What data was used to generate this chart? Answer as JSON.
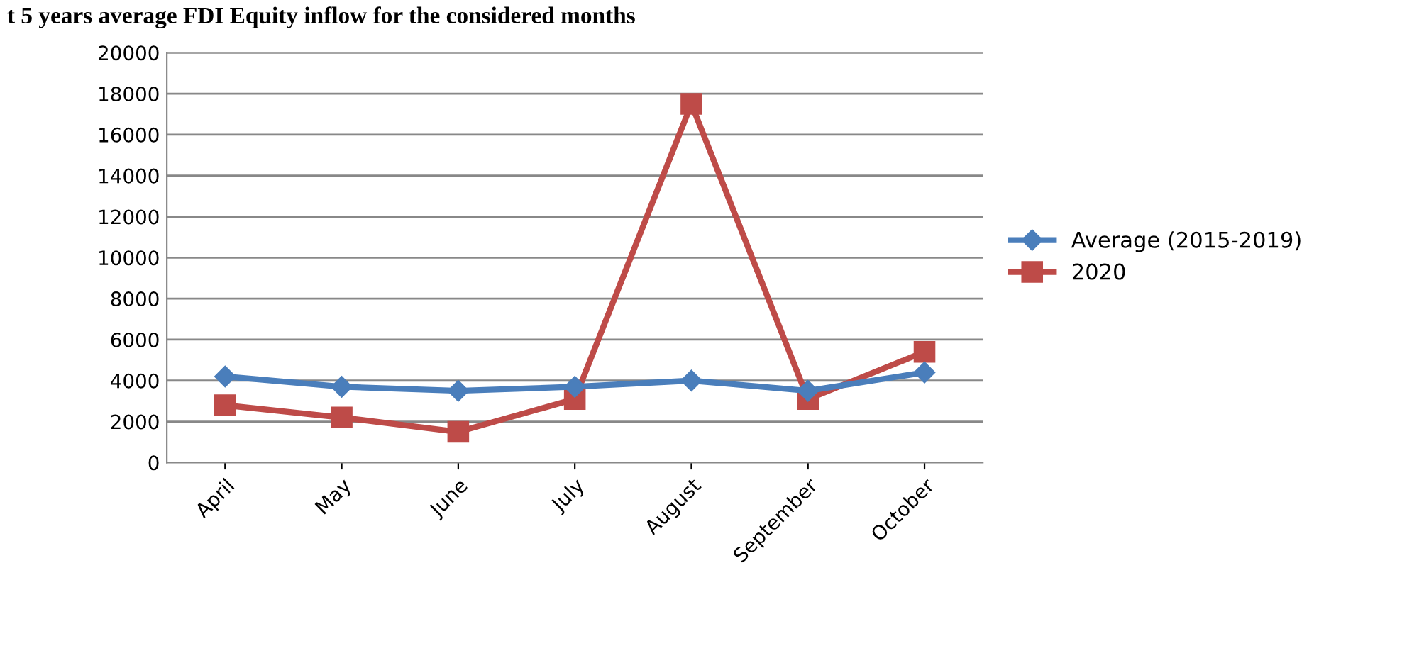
{
  "chart_data": {
    "type": "line",
    "title": "t 5 years average FDI Equity inflow for the considered months",
    "categories": [
      "April",
      "May",
      "June",
      "July",
      "August",
      "September",
      "October"
    ],
    "series": [
      {
        "name": "Average (2015-2019)",
        "color": "#4a7ebb",
        "marker": "diamond",
        "values": [
          4200,
          3700,
          3500,
          3700,
          4000,
          3500,
          4400
        ]
      },
      {
        "name": "2020",
        "color": "#be4b48",
        "marker": "square",
        "values": [
          2800,
          2200,
          1500,
          3100,
          17500,
          3100,
          5400
        ]
      }
    ],
    "ylim": [
      0,
      20000
    ],
    "yticks": [
      0,
      2000,
      4000,
      6000,
      8000,
      10000,
      12000,
      14000,
      16000,
      18000,
      20000
    ],
    "grid": "y",
    "legend": "right"
  }
}
